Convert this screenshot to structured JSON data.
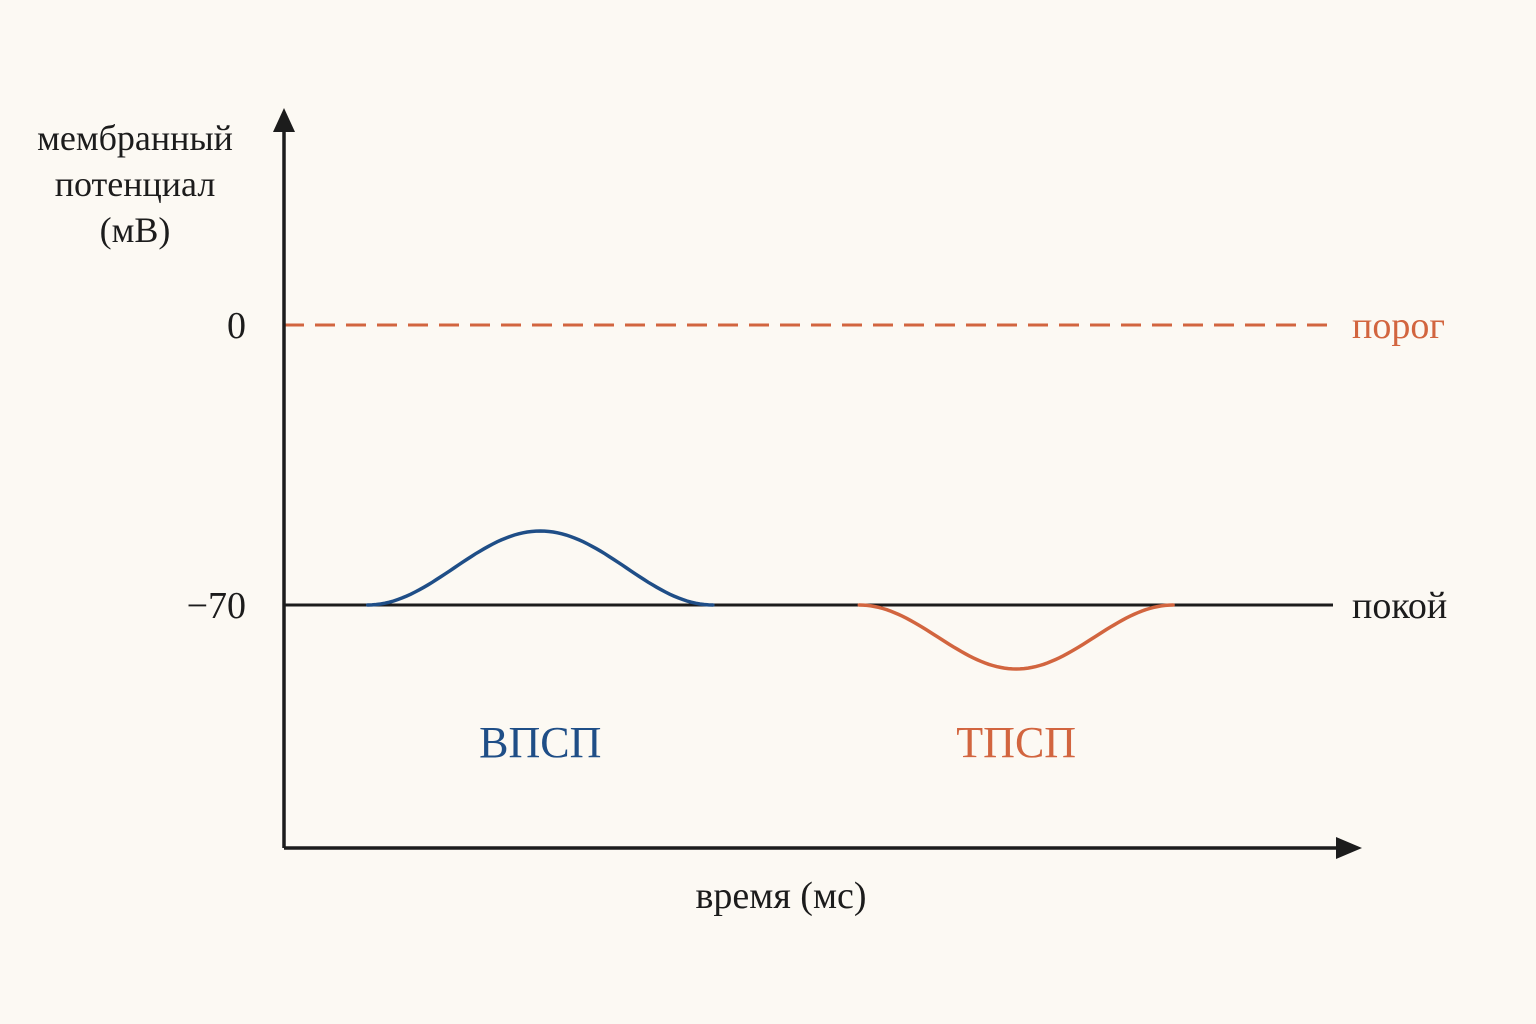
{
  "colors": {
    "background": "#fcf9f3",
    "axis": "#1c1c1c",
    "epsp": "#1f4e87",
    "ipsp": "#d2653f",
    "threshold": "#d2653f"
  },
  "chart_data": {
    "type": "line",
    "title": "",
    "ylabel_lines": [
      "мембранный",
      "потенциал",
      "(мВ)"
    ],
    "xlabel": "время (мс)",
    "y_ticks": [
      {
        "value": 0,
        "label": "0"
      },
      {
        "value": -70,
        "label": "−70"
      }
    ],
    "threshold": {
      "value": 0,
      "label": "порог",
      "style": "dashed"
    },
    "rest": {
      "value": -70,
      "label": "покой",
      "style": "solid"
    },
    "grid": false,
    "legend": "none",
    "series": [
      {
        "name": "ВПСП",
        "color": "#1f4e87",
        "start": 8,
        "end": 41,
        "peak_t": 24.5,
        "peak_value": -51.5
      },
      {
        "name": "ТПСП",
        "color": "#d2653f",
        "start": 55,
        "end": 85,
        "peak_t": 70,
        "peak_value": -86
      }
    ]
  }
}
